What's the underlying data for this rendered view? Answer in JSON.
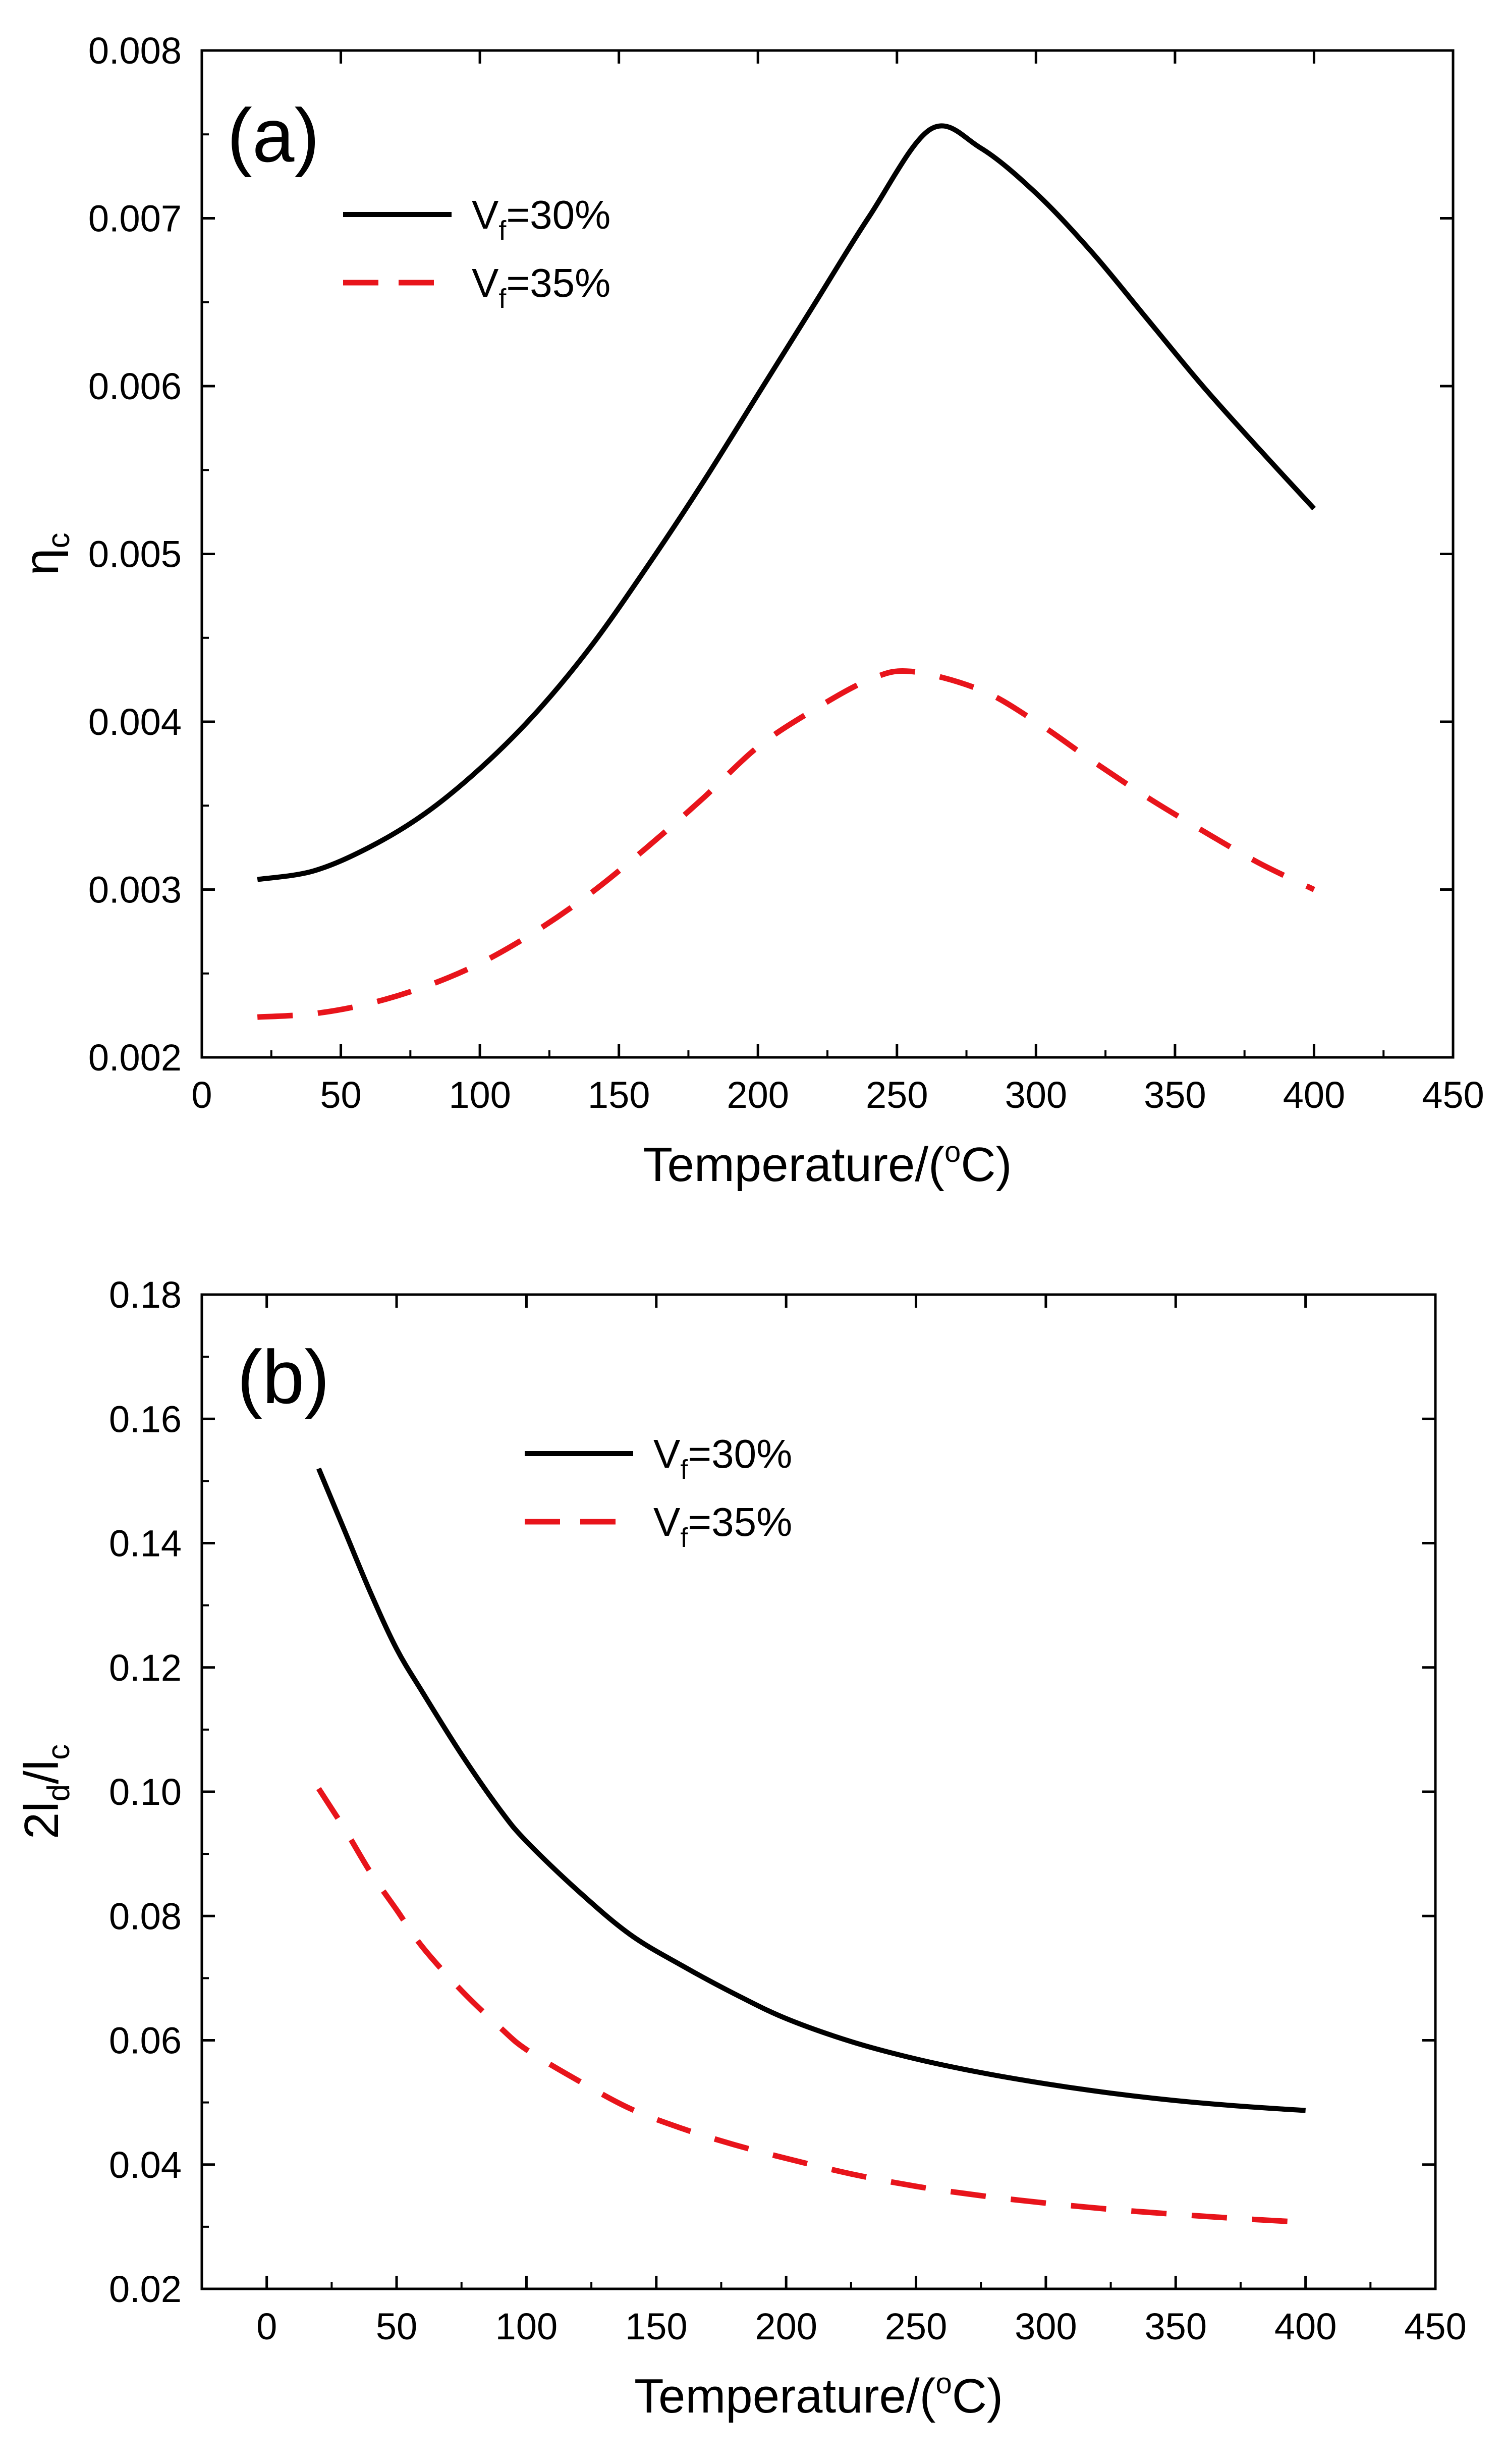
{
  "chart_data": [
    {
      "type": "line",
      "panel_label": "(a)",
      "xlabel": "Temperature/(",
      "xlabel_sup": "o",
      "xlabel_tail": "C)",
      "ylabel": "η",
      "ylabel_sub": "c",
      "xlim": [
        0,
        450
      ],
      "ylim": [
        0.002,
        0.008
      ],
      "xticks": [
        0,
        50,
        100,
        150,
        200,
        250,
        300,
        350,
        400,
        450
      ],
      "xtick_labels": [
        "0",
        "50",
        "100",
        "150",
        "200",
        "250",
        "300",
        "350",
        "400",
        "450"
      ],
      "yticks": [
        0.002,
        0.003,
        0.004,
        0.005,
        0.006,
        0.007,
        0.008
      ],
      "ytick_labels": [
        "0.002",
        "0.003",
        "0.004",
        "0.005",
        "0.006",
        "0.007",
        "0.008"
      ],
      "legend_position": "top-left",
      "series": [
        {
          "name": "Vf=30%",
          "name_main": "V",
          "name_sub": "f",
          "name_tail": "=30%",
          "color": "#000000",
          "style": "solid",
          "x": [
            20,
            40,
            60,
            80,
            100,
            120,
            140,
            160,
            180,
            200,
            220,
            240,
            262,
            280,
            300,
            320,
            340,
            360,
            380,
            400
          ],
          "y": [
            0.00306,
            0.00311,
            0.00325,
            0.00345,
            0.00372,
            0.00405,
            0.00445,
            0.00492,
            0.00542,
            0.00595,
            0.00648,
            0.00701,
            0.00753,
            0.00742,
            0.00715,
            0.0068,
            0.0064,
            0.006,
            0.00563,
            0.00527
          ]
        },
        {
          "name": "Vf=35%",
          "name_main": "V",
          "name_sub": "f",
          "name_tail": "=35%",
          "color": "#e8141b",
          "style": "dashed",
          "x": [
            20,
            40,
            60,
            80,
            100,
            120,
            140,
            160,
            180,
            200,
            220,
            240,
            255,
            280,
            300,
            320,
            340,
            360,
            380,
            400
          ],
          "y": [
            0.00224,
            0.00226,
            0.00232,
            0.00242,
            0.00256,
            0.00275,
            0.00298,
            0.00325,
            0.00354,
            0.00385,
            0.00407,
            0.00425,
            0.0043,
            0.00419,
            0.004,
            0.00377,
            0.00355,
            0.00335,
            0.00316,
            0.003
          ]
        }
      ]
    },
    {
      "type": "line",
      "panel_label": "(b)",
      "xlabel": "Temperature/(",
      "xlabel_sup": "o",
      "xlabel_tail": "C)",
      "ylabel": "2l",
      "ylabel_sub": "d",
      "ylabel_mid": "/l",
      "ylabel_sub2": "c",
      "xlim": [
        -25,
        450
      ],
      "ylim": [
        0.02,
        0.18
      ],
      "xticks": [
        0,
        50,
        100,
        150,
        200,
        250,
        300,
        350,
        400,
        450
      ],
      "xtick_labels": [
        "0",
        "50",
        "100",
        "150",
        "200",
        "250",
        "300",
        "350",
        "400",
        "450"
      ],
      "yticks": [
        0.02,
        0.04,
        0.06,
        0.08,
        0.1,
        0.12,
        0.14,
        0.16,
        0.18
      ],
      "ytick_labels": [
        "0.02",
        "0.04",
        "0.06",
        "0.08",
        "0.10",
        "0.12",
        "0.14",
        "0.16",
        "0.18"
      ],
      "legend_position": "top-center",
      "series": [
        {
          "name": "Vf=30%",
          "name_main": "V",
          "name_sub": "f",
          "name_tail": "=30%",
          "color": "#000000",
          "style": "solid",
          "x": [
            20,
            30,
            40,
            50,
            60,
            75,
            90,
            100,
            120,
            140,
            160,
            180,
            200,
            225,
            250,
            275,
            300,
            325,
            350,
            375,
            400
          ],
          "y": [
            0.152,
            0.142,
            0.132,
            0.123,
            0.116,
            0.106,
            0.097,
            0.092,
            0.084,
            0.077,
            0.072,
            0.0675,
            0.0635,
            0.0598,
            0.057,
            0.0548,
            0.053,
            0.0515,
            0.0503,
            0.0494,
            0.0487
          ]
        },
        {
          "name": "Vf=35%",
          "name_main": "V",
          "name_sub": "f",
          "name_tail": "=35%",
          "color": "#e8141b",
          "style": "dashed",
          "x": [
            20,
            30,
            40,
            50,
            60,
            75,
            90,
            100,
            120,
            140,
            160,
            180,
            200,
            225,
            250,
            275,
            300,
            325,
            350,
            375,
            400
          ],
          "y": [
            0.1005,
            0.094,
            0.087,
            0.081,
            0.075,
            0.068,
            0.062,
            0.0585,
            0.0535,
            0.049,
            0.0458,
            0.0432,
            0.041,
            0.0385,
            0.0365,
            0.035,
            0.0338,
            0.0328,
            0.032,
            0.0313,
            0.0307
          ]
        }
      ]
    }
  ]
}
